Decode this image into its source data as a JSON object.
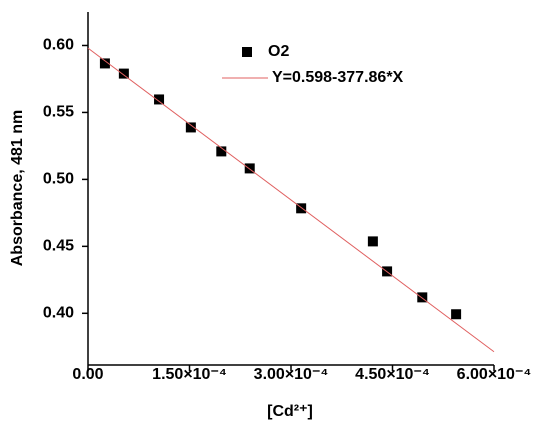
{
  "chart_data": {
    "type": "scatter",
    "x_label": "[Cd²⁺]",
    "y_label": "Absorbance, 481 nm",
    "xlim": [
      0,
      0.0006
    ],
    "ylim": [
      0.3614,
      0.625
    ],
    "xticks": [
      {
        "value": 0,
        "label": "0.00"
      },
      {
        "value": 0.00015,
        "label": "1.50×10⁻⁴"
      },
      {
        "value": 0.0003,
        "label": "3.00×10⁻⁴"
      },
      {
        "value": 0.00045,
        "label": "4.50×10⁻⁴"
      },
      {
        "value": 0.0006,
        "label": "6.00×10⁻⁴"
      }
    ],
    "yticks": [
      {
        "value": 0.4,
        "label": "0.40"
      },
      {
        "value": 0.45,
        "label": "0.45"
      },
      {
        "value": 0.5,
        "label": "0.50"
      },
      {
        "value": 0.55,
        "label": "0.55"
      },
      {
        "value": 0.6,
        "label": "0.60"
      }
    ],
    "series": [
      {
        "name": "O2",
        "type": "scatter",
        "color": "#000000",
        "x": [
          2.5e-05,
          5.3e-05,
          0.000105,
          0.000152,
          0.000197,
          0.000239,
          0.000315,
          0.000421,
          0.000442,
          0.000494,
          0.000544
        ],
        "values": [
          0.5866,
          0.579,
          0.5597,
          0.5388,
          0.5209,
          0.5082,
          0.4784,
          0.4537,
          0.4313,
          0.4119,
          0.3993
        ]
      },
      {
        "name": "Y=0.598-377.86*X",
        "type": "line",
        "color": "#e06060",
        "x": [
          0,
          0.0006
        ],
        "values": [
          0.598,
          0.3713
        ]
      }
    ]
  }
}
